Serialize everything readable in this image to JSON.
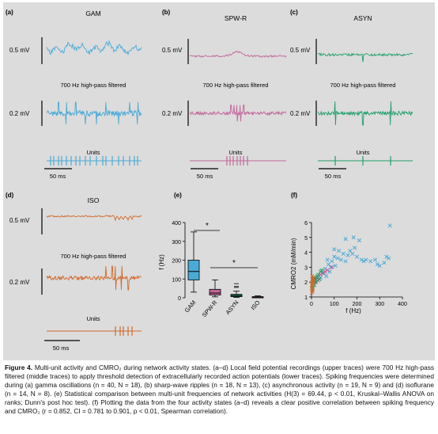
{
  "colors": {
    "gam": "#4aaad6",
    "spwr": "#c2679a",
    "asyn": "#1f9e6a",
    "iso": "#d2692a",
    "background": "#dcdcdc"
  },
  "panels": {
    "a": {
      "letter": "(a)",
      "title": "GAM",
      "lfp_scale": "0.5 mV",
      "filter_label": "700 Hz high-pass filtered",
      "hp_scale": "0.2 mV",
      "units_label": "Units",
      "time_scale": "50 ms"
    },
    "b": {
      "letter": "(b)",
      "title": "SPW-R",
      "lfp_scale": "0.5 mV",
      "filter_label": "700 Hz high-pass filtered",
      "hp_scale": "0.2 mV",
      "units_label": "Units",
      "time_scale": "50 ms"
    },
    "c": {
      "letter": "(c)",
      "title": "ASYN",
      "lfp_scale": "0.5 mV",
      "filter_label": "700 Hz high-pass filtered",
      "hp_scale": "0.2 mV",
      "units_label": "Units",
      "time_scale": "50 ms"
    },
    "d": {
      "letter": "(d)",
      "title": "ISO",
      "lfp_scale": "0.5 mV",
      "filter_label": "700 Hz high-pass filtered",
      "hp_scale": "0.2 mV",
      "units_label": "Units",
      "time_scale": "50 ms"
    }
  },
  "panel_e": {
    "letter": "(e)",
    "ylabel": "f (Hz)",
    "sig1": "*",
    "sig2": "*"
  },
  "panel_f": {
    "letter": "(f)",
    "ylabel": "CMRO2 (mM/min)",
    "xlabel": "f (Hz)"
  },
  "chart_data": [
    {
      "type": "box",
      "ylabel": "f (Hz)",
      "ylim": [
        0,
        400
      ],
      "yticks": [
        0,
        100,
        200,
        300,
        400
      ],
      "categories": [
        "GAM",
        "SPW-R",
        "ASYN",
        "ISO"
      ],
      "series": [
        {
          "name": "GAM",
          "whisker_low": 30,
          "q1": 95,
          "median": 140,
          "q3": 200,
          "whisker_high": 350,
          "outliers": []
        },
        {
          "name": "SPW-R",
          "whisker_low": 5,
          "q1": 15,
          "median": 25,
          "q3": 45,
          "whisker_high": 95,
          "outliers": []
        },
        {
          "name": "ASYN",
          "whisker_low": 2,
          "q1": 6,
          "median": 12,
          "q3": 18,
          "whisker_high": 35,
          "outliers": [
            55,
            60,
            75
          ]
        },
        {
          "name": "ISO",
          "whisker_low": 0,
          "q1": 2,
          "median": 4,
          "q3": 6,
          "whisker_high": 10,
          "outliers": []
        }
      ],
      "significance": [
        "*",
        "*"
      ]
    },
    {
      "type": "scatter",
      "xlabel": "f (Hz)",
      "ylabel": "CMRO2 (mM/min)",
      "xlim": [
        0,
        400
      ],
      "ylim": [
        1,
        6
      ],
      "xticks": [
        0,
        100,
        200,
        300,
        400
      ],
      "yticks": [
        1,
        2,
        3,
        4,
        5,
        6
      ],
      "series": [
        {
          "name": "GAM",
          "points": [
            [
              40,
              2.3
            ],
            [
              55,
              2.6
            ],
            [
              65,
              2.4
            ],
            [
              75,
              3.2
            ],
            [
              85,
              3.0
            ],
            [
              90,
              3.4
            ],
            [
              100,
              3.7
            ],
            [
              105,
              3.1
            ],
            [
              115,
              3.6
            ],
            [
              120,
              4.1
            ],
            [
              130,
              3.5
            ],
            [
              140,
              3.9
            ],
            [
              150,
              3.4
            ],
            [
              160,
              3.8
            ],
            [
              170,
              4.1
            ],
            [
              180,
              3.9
            ],
            [
              190,
              4.3
            ],
            [
              200,
              3.7
            ],
            [
              210,
              4.8
            ],
            [
              220,
              3.5
            ],
            [
              230,
              3.4
            ],
            [
              240,
              3.5
            ],
            [
              260,
              3.4
            ],
            [
              280,
              3.5
            ],
            [
              290,
              3.2
            ],
            [
              300,
              3.1
            ],
            [
              320,
              3.3
            ],
            [
              330,
              3.7
            ],
            [
              340,
              3.6
            ],
            [
              345,
              5.8
            ],
            [
              150,
              4.9
            ],
            [
              185,
              5.0
            ],
            [
              100,
              4.2
            ],
            [
              60,
              2.9
            ],
            [
              70,
              3.5
            ],
            [
              80,
              2.7
            ]
          ]
        },
        {
          "name": "SPW-R",
          "points": [
            [
              5,
              1.9
            ],
            [
              10,
              2.1
            ],
            [
              15,
              2.0
            ],
            [
              20,
              2.2
            ],
            [
              25,
              2.3
            ],
            [
              30,
              2.1
            ],
            [
              40,
              2.5
            ],
            [
              50,
              2.6
            ],
            [
              60,
              2.7
            ],
            [
              70,
              2.8
            ],
            [
              90,
              3.0
            ],
            [
              12,
              1.8
            ],
            [
              35,
              2.2
            ]
          ]
        },
        {
          "name": "ASYN",
          "points": [
            [
              3,
              1.7
            ],
            [
              5,
              1.9
            ],
            [
              8,
              2.0
            ],
            [
              10,
              2.1
            ],
            [
              12,
              1.8
            ],
            [
              15,
              2.2
            ],
            [
              18,
              2.3
            ],
            [
              20,
              2.0
            ],
            [
              25,
              2.4
            ],
            [
              30,
              2.5
            ],
            [
              35,
              2.2
            ],
            [
              40,
              2.7
            ],
            [
              45,
              2.8
            ],
            [
              6,
              1.6
            ],
            [
              9,
              2.2
            ]
          ]
        },
        {
          "name": "ISO",
          "points": [
            [
              1,
              1.6
            ],
            [
              2,
              1.8
            ],
            [
              3,
              2.0
            ],
            [
              4,
              1.7
            ],
            [
              5,
              2.1
            ],
            [
              6,
              1.9
            ],
            [
              7,
              2.2
            ],
            [
              8,
              2.0
            ],
            [
              2,
              1.3
            ],
            [
              4,
              1.5
            ],
            [
              6,
              2.3
            ],
            [
              3,
              2.4
            ],
            [
              5,
              1.4
            ]
          ]
        }
      ]
    }
  ],
  "caption": {
    "label": "Figure 4.",
    "text": "Multi-unit activity and CMRO₂ during network activity states. (a–d) Local field potential recordings (upper traces) were 700 Hz high-pass filtered (middle traces) to apply threshold detection of extracellularly recorded action potentials (lower traces). Spiking frequencies were determined during (a) gamma oscillations (n = 40, N = 18), (b) sharp-wave ripples (n = 18, N = 13), (c) asynchronous activity (n = 19, N = 9) and (d) isoflurane (n = 14, N = 8). (e) Statistical comparison between multi-unit frequencies of network activities (H(3) = 69.44, p < 0.01, Kruskal–Wallis ANOVA on ranks; Dunn's post hoc test). (f) Plotting the data from the four activity states (a–d) reveals a clear positive correlation between spiking frequency and CMRO₂ (r = 0.852, CI = 0.781 to 0.901, p < 0.01, Spearman correlation)."
  }
}
